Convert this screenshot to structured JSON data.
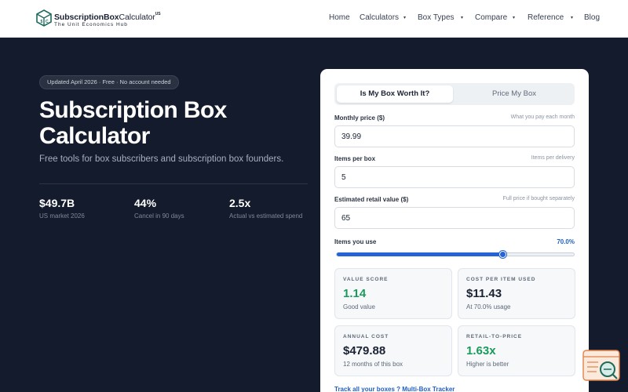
{
  "nav": {
    "brand_bold": "SubscriptionBox",
    "brand_light": "Calculator",
    "brand_sup": "US",
    "tagline": "The Unit Economics Hub",
    "items": [
      {
        "label": "Home",
        "has_caret": false
      },
      {
        "label": "Calculators",
        "has_caret": true
      },
      {
        "label": "Box Types",
        "has_caret": true
      },
      {
        "label": "Compare",
        "has_caret": true
      },
      {
        "label": "Reference",
        "has_caret": true
      },
      {
        "label": "Blog",
        "has_caret": false
      }
    ],
    "caret": "▾"
  },
  "hero": {
    "badge": "Updated April 2026 · Free · No account needed",
    "title": "Subscription Box Calculator",
    "subtitle": "Free tools for box subscribers and subscription box founders.",
    "stats": [
      {
        "value": "$49.7B",
        "label": "US market 2026"
      },
      {
        "value": "44%",
        "label": "Cancel in 90 days"
      },
      {
        "value": "2.5x",
        "label": "Actual vs estimated spend"
      }
    ]
  },
  "calculator": {
    "tabs": [
      {
        "label": "Is My Box Worth It?",
        "active": true
      },
      {
        "label": "Price My Box",
        "active": false
      }
    ],
    "fields": {
      "monthly_price": {
        "label": "Monthly price ($)",
        "hint": "What you pay each month",
        "value": "39.99"
      },
      "items_per_box": {
        "label": "Items per box",
        "hint": "Items per delivery",
        "value": "5"
      },
      "retail_value": {
        "label": "Estimated retail value ($)",
        "hint": "Full price if bought separately",
        "value": "65"
      }
    },
    "usage": {
      "label": "Items you use",
      "display": "70.0%",
      "fraction": 0.7
    },
    "metrics": [
      {
        "label": "VALUE SCORE",
        "value": "1.14",
        "sub": "Good value",
        "color": "#1a9a5b"
      },
      {
        "label": "COST PER ITEM USED",
        "value": "$11.43",
        "sub": "At 70.0% usage",
        "color": "#1a2233"
      },
      {
        "label": "ANNUAL COST",
        "value": "$479.88",
        "sub": "12 months of this box",
        "color": "#1a2233"
      },
      {
        "label": "RETAIL-TO-PRICE",
        "value": "1.63x",
        "sub": "Higher is better",
        "color": "#1a9a5b"
      }
    ],
    "tracker_link": "Track all your boxes ? Multi-Box Tracker"
  },
  "colors": {
    "background": "#141b2d",
    "accent": "#2563d6",
    "positive": "#1a9a5b"
  },
  "icons": {
    "logo": "box-logo-icon",
    "caret": "chevron-down-icon",
    "widget": "calculator-search-icon"
  }
}
